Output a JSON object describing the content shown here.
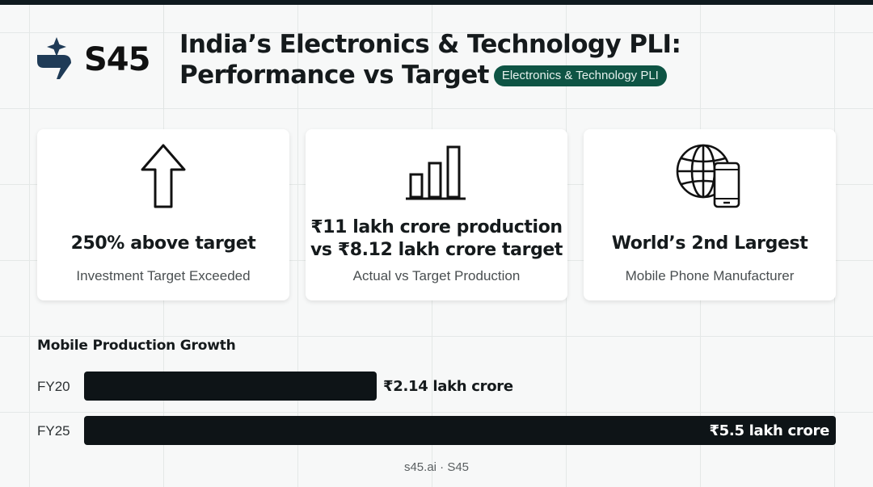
{
  "brand": {
    "name": "S45",
    "logo_icon": "s45-sparkle-logo-icon",
    "accent_color": "#0e5444"
  },
  "header": {
    "title_line1": "India’s Electronics & Technology PLI:",
    "title_line2": "Performance vs Target",
    "badge": "Electronics & Technology PLI"
  },
  "cards": [
    {
      "icon": "arrow-up-icon",
      "title": "250% above target",
      "subtitle": "Investment Target Exceeded"
    },
    {
      "icon": "bar-chart-icon",
      "title_line1": "₹11 lakh crore production",
      "title_line2": "vs ₹8.12 lakh crore target",
      "subtitle": "Actual vs Target Production"
    },
    {
      "icon": "globe-phone-icon",
      "title": "World’s 2nd Largest",
      "subtitle": "Mobile Phone Manufacturer"
    }
  ],
  "chart_data": {
    "type": "bar",
    "orientation": "horizontal",
    "title": "Mobile Production Growth",
    "categories": [
      "FY20",
      "FY25"
    ],
    "values": [
      2.14,
      5.5
    ],
    "value_labels": [
      "₹2.14 lakh crore",
      "₹5.5 lakh crore"
    ],
    "bar_color": "#0e1417",
    "xlim": [
      0,
      5.5
    ]
  },
  "footer": {
    "text": "s45.ai · S45"
  }
}
